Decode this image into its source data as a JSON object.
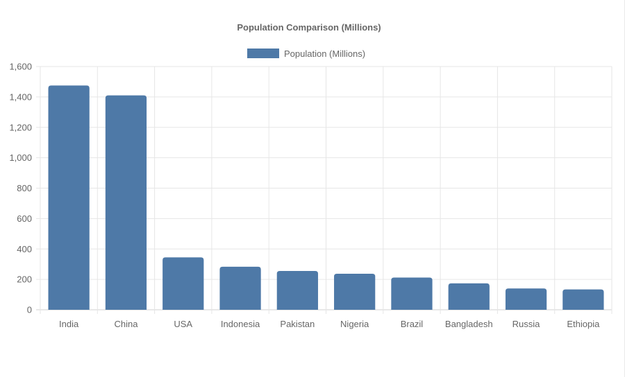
{
  "chart_data": {
    "type": "bar",
    "title": "Population Comparison (Millions)",
    "categories": [
      "India",
      "China",
      "USA",
      "Indonesia",
      "Pakistan",
      "Nigeria",
      "Brazil",
      "Bangladesh",
      "Russia",
      "Ethiopia"
    ],
    "series": [
      {
        "name": "Population (Millions)",
        "values": [
          1475,
          1410,
          345,
          283,
          255,
          237,
          212,
          174,
          140,
          134
        ],
        "color": "#4e79a7"
      }
    ],
    "ylim": [
      0,
      1600
    ],
    "yticks": [
      0,
      200,
      400,
      600,
      800,
      1000,
      1200,
      1400,
      1600
    ],
    "ytick_labels": [
      "0",
      "200",
      "400",
      "600",
      "800",
      "1,000",
      "1,200",
      "1,400",
      "1,600"
    ],
    "grid": true,
    "legend_position": "top-center"
  }
}
